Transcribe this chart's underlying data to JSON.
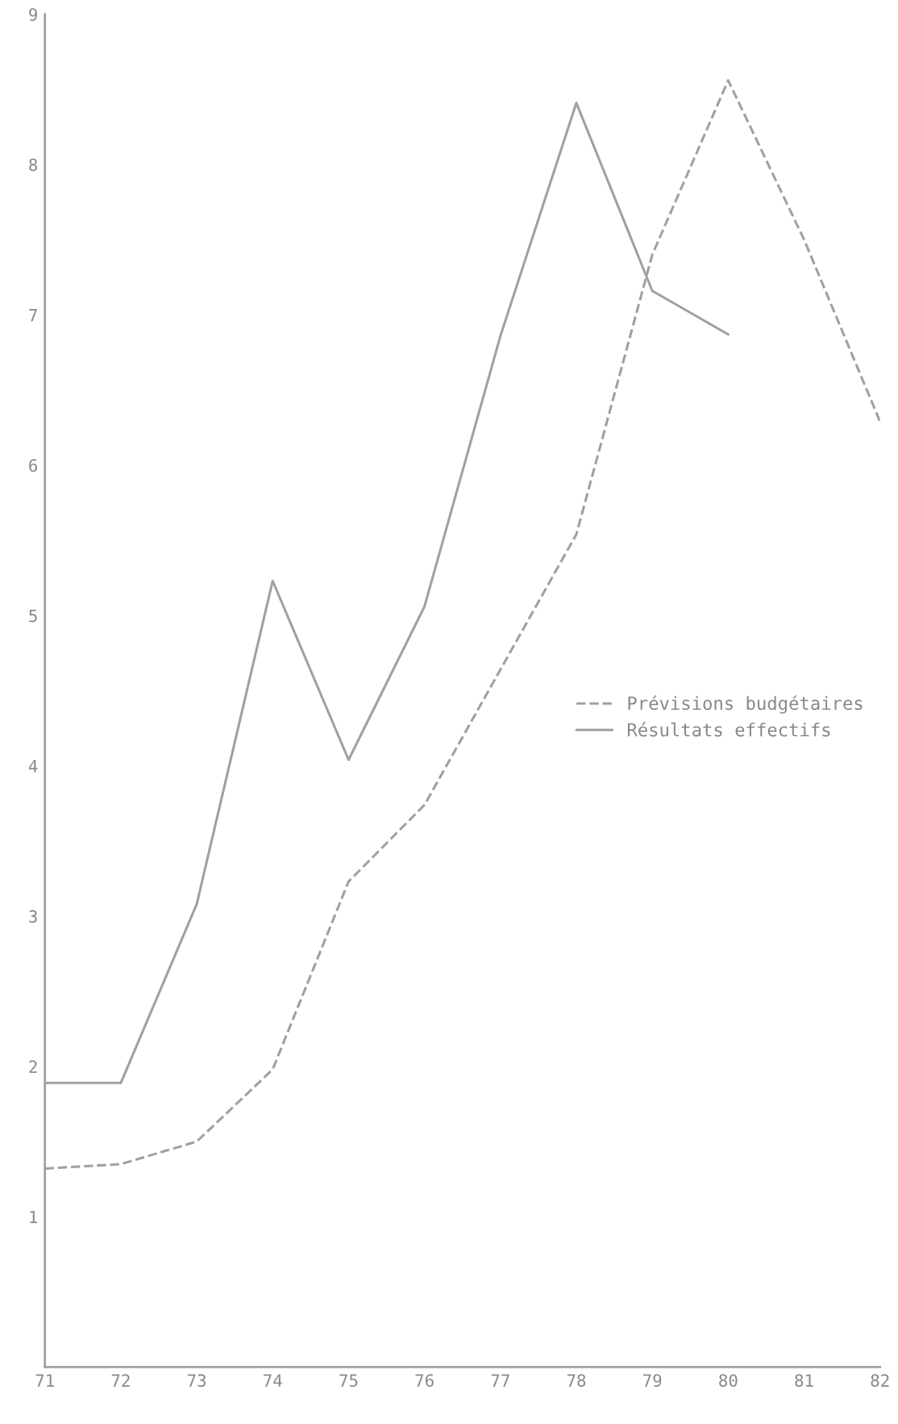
{
  "chart_data": {
    "type": "line",
    "x": [
      71,
      72,
      73,
      74,
      75,
      76,
      77,
      78,
      79,
      80,
      81,
      82
    ],
    "series": [
      {
        "name": "Prévisions budgétaires",
        "color": "#a0a0a0",
        "line_style": "dashed",
        "values": [
          1.32,
          1.35,
          1.5,
          1.98,
          3.23,
          3.74,
          4.64,
          5.54,
          7.4,
          8.56,
          7.5,
          6.29
        ]
      },
      {
        "name": "Résultats effectifs",
        "color": "#a0a0a0",
        "line_style": "solid",
        "values": [
          1.89,
          1.89,
          3.08,
          5.23,
          4.04,
          5.06,
          6.86,
          8.41,
          7.16,
          6.87,
          null,
          null
        ]
      }
    ],
    "xlim": [
      71,
      82
    ],
    "xticks": [
      71,
      72,
      73,
      74,
      75,
      76,
      77,
      78,
      79,
      80,
      81,
      82
    ],
    "ylim": [
      0,
      9
    ],
    "yticks": [
      1,
      2,
      3,
      4,
      5,
      6,
      7,
      8,
      9
    ],
    "grid": false,
    "legend": "right"
  }
}
